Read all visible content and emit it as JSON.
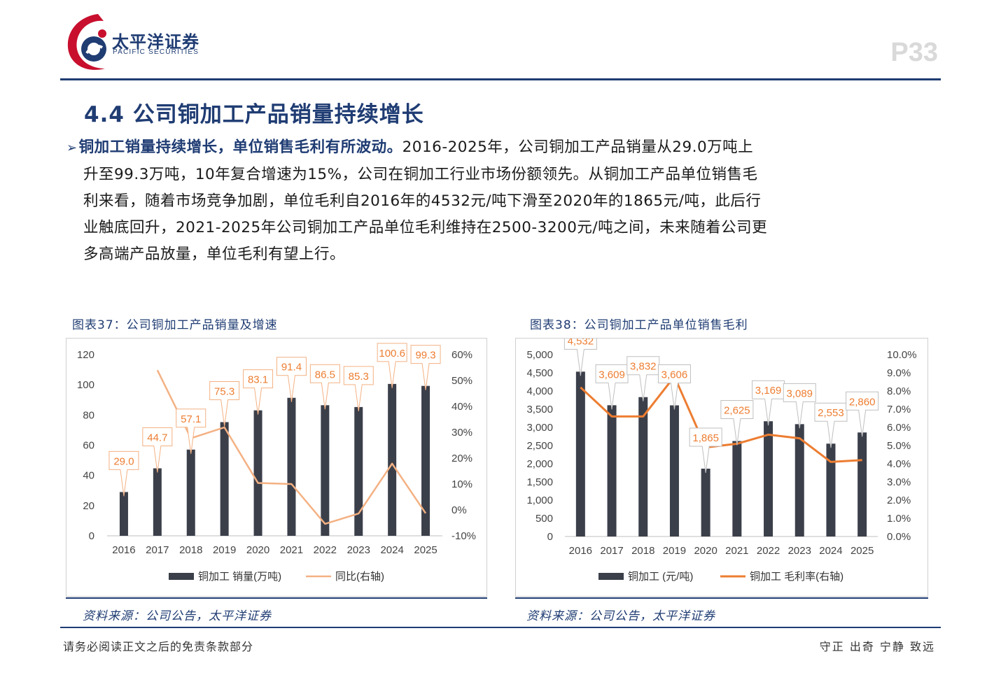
{
  "header": {
    "brand_cn": "太平洋证券",
    "brand_en": "PACIFIC SECURITIES",
    "page_number": "P33"
  },
  "section": {
    "title": "4.4 公司铜加工产品销量持续增长"
  },
  "paragraph": {
    "highlight": "铜加工销量持续增长，单位销售毛利有所波动。",
    "line1_rest": "2016-2025年，公司铜加工产品销量从29.0万吨上",
    "line2": "升至99.3万吨，10年复合增速为15%，公司在铜加工行业市场份额领先。从铜加工产品单位销售毛",
    "line3": "利来看，随着市场竞争加剧，单位毛利自2016年的4532元/吨下滑至2020年的1865元/吨，此后行",
    "line4": "业触底回升，2021-2025年公司铜加工产品单位毛利维持在2500-3200元/吨之间，未来随着公司更",
    "line5": "多高端产品放量，单位毛利有望上行。"
  },
  "figures": {
    "fig37_title": "图表37：公司铜加工产品销量及增速",
    "fig38_title": "图表38：公司铜加工产品单位销售毛利",
    "fig37_source": "资料来源：公司公告，太平洋证券",
    "fig38_source": "资料来源：公司公告，太平洋证券"
  },
  "footer": {
    "disclaimer": "请务必阅读正文之后的免责条款部分",
    "motto": "守正 出奇 宁静 致远"
  },
  "colors": {
    "brand_blue": "#1f3c73",
    "logo_red": "#c8102e",
    "bar": "#3b3f4a",
    "line37": "#f4b183",
    "line38": "#ed7d31",
    "label_border37": "#f4b183",
    "label_text37": "#ed7d31"
  },
  "chart_data": [
    {
      "type": "bar",
      "categories": [
        "2016",
        "2017",
        "2018",
        "2019",
        "2020",
        "2021",
        "2022",
        "2023",
        "2024",
        "2025"
      ],
      "series": [
        {
          "name": "铜加工 销量(万吨)",
          "type": "bar",
          "axis": "left",
          "values": [
            29.0,
            44.7,
            57.1,
            75.3,
            83.1,
            91.4,
            86.5,
            85.3,
            100.6,
            99.3
          ],
          "labels": [
            "29.0",
            "44.7",
            "57.1",
            "75.3",
            "83.1",
            "91.4",
            "86.5",
            "85.3",
            "100.6",
            "99.3"
          ]
        },
        {
          "name": "同比(右轴)",
          "type": "line",
          "axis": "right",
          "values": [
            null,
            54.0,
            27.7,
            31.9,
            10.4,
            10.0,
            -5.4,
            -1.4,
            17.9,
            -1.3
          ]
        }
      ],
      "y_left": {
        "min": 0,
        "max": 120,
        "ticks": [
          "0",
          "20",
          "40",
          "60",
          "80",
          "100",
          "120"
        ]
      },
      "y_right": {
        "min": -10,
        "max": 60,
        "ticks": [
          "-10%",
          "0%",
          "10%",
          "20%",
          "30%",
          "40%",
          "50%",
          "60%"
        ]
      },
      "legend_position": "bottom",
      "grid": false
    },
    {
      "type": "bar",
      "categories": [
        "2016",
        "2017",
        "2018",
        "2019",
        "2020",
        "2021",
        "2022",
        "2023",
        "2024",
        "2025"
      ],
      "series": [
        {
          "name": "铜加工 (元/吨)",
          "type": "bar",
          "axis": "left",
          "values": [
            4532,
            3609,
            3832,
            3606,
            1865,
            2625,
            3169,
            3089,
            2553,
            2860
          ],
          "labels": [
            "4,532",
            "3,609",
            "3,832",
            "3,606",
            "1,865",
            "2,625",
            "3,169",
            "3,089",
            "2,553",
            "2,860"
          ]
        },
        {
          "name": "铜加工 毛利率(右轴)",
          "type": "line",
          "axis": "right",
          "values": [
            8.2,
            6.6,
            6.6,
            8.8,
            4.9,
            5.1,
            5.6,
            5.4,
            4.1,
            4.2
          ]
        }
      ],
      "y_left": {
        "min": 0,
        "max": 5000,
        "ticks": [
          "0",
          "500",
          "1,000",
          "1,500",
          "2,000",
          "2,500",
          "3,000",
          "3,500",
          "4,000",
          "4,500",
          "5,000"
        ]
      },
      "y_right": {
        "min": 0,
        "max": 10,
        "ticks": [
          "0.0%",
          "1.0%",
          "2.0%",
          "3.0%",
          "4.0%",
          "5.0%",
          "6.0%",
          "7.0%",
          "8.0%",
          "9.0%",
          "10.0%"
        ]
      },
      "legend_position": "bottom",
      "grid": false
    }
  ]
}
